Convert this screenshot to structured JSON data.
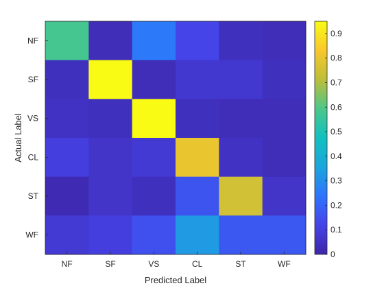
{
  "chart_data": {
    "type": "heatmap",
    "title": "",
    "xlabel": "Predicted Label",
    "ylabel": "Actual Label",
    "x_categories": [
      "NF",
      "SF",
      "VS",
      "CL",
      "ST",
      "WF"
    ],
    "y_categories": [
      "NF",
      "SF",
      "VS",
      "CL",
      "ST",
      "WF"
    ],
    "values": [
      [
        0.58,
        0.03,
        0.25,
        0.12,
        0.04,
        0.03
      ],
      [
        0.04,
        0.95,
        0.03,
        0.07,
        0.07,
        0.04
      ],
      [
        0.05,
        0.04,
        0.95,
        0.04,
        0.03,
        0.03
      ],
      [
        0.1,
        0.06,
        0.08,
        0.8,
        0.05,
        0.03
      ],
      [
        0.02,
        0.06,
        0.04,
        0.16,
        0.75,
        0.06
      ],
      [
        0.08,
        0.1,
        0.15,
        0.33,
        0.17,
        0.17
      ]
    ],
    "colorbar": {
      "colormap": "parula",
      "range": [
        0,
        0.95
      ],
      "ticks": [
        "0",
        "0.1",
        "0.2",
        "0.3",
        "0.4",
        "0.5",
        "0.6",
        "0.7",
        "0.8",
        "0.9"
      ]
    },
    "grid": false
  }
}
